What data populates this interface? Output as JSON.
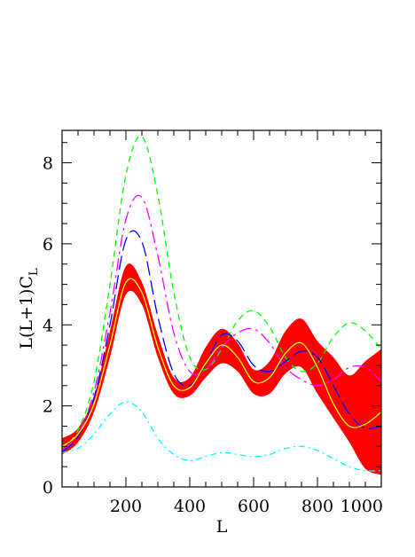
{
  "chart_data": {
    "type": "line",
    "title": "",
    "xlabel": "L",
    "ylabel_main": "L(L+1)C",
    "ylabel_sub": "L",
    "xlim": [
      0,
      1000
    ],
    "ylim": [
      0,
      8.8
    ],
    "x_ticks": [
      200,
      400,
      600,
      800,
      1000
    ],
    "x_tick_labels": [
      "200",
      "400",
      "600",
      "800",
      "1000"
    ],
    "y_ticks": [
      0,
      2,
      4,
      6,
      8
    ],
    "y_tick_labels": [
      "0",
      "2",
      "4",
      "6",
      "8"
    ],
    "grid": false,
    "legend": "none",
    "band": {
      "color": "#ff0000",
      "x": [
        0,
        50,
        100,
        150,
        200,
        250,
        300,
        350,
        400,
        450,
        500,
        550,
        600,
        650,
        700,
        750,
        800,
        850,
        900,
        950,
        1000
      ],
      "lower": [
        0.8,
        1.1,
        1.85,
        3.2,
        4.75,
        4.5,
        3.2,
        2.3,
        2.25,
        2.7,
        3.05,
        2.85,
        2.3,
        2.3,
        2.8,
        2.95,
        2.3,
        1.7,
        1.1,
        0.45,
        0.3
      ],
      "upper": [
        1.2,
        1.45,
        2.25,
        3.85,
        5.45,
        5.05,
        3.75,
        2.7,
        2.7,
        3.45,
        3.9,
        3.55,
        2.9,
        3.1,
        3.85,
        4.15,
        3.6,
        3.2,
        2.75,
        3.1,
        3.4
      ]
    },
    "series": [
      {
        "color": "#ffff00",
        "dash": "",
        "x": [
          0,
          50,
          100,
          150,
          200,
          250,
          300,
          350,
          400,
          450,
          500,
          550,
          600,
          650,
          700,
          750,
          800,
          850,
          900,
          950,
          1000
        ],
        "y": [
          1.0,
          1.3,
          2.05,
          3.5,
          5.05,
          4.8,
          3.45,
          2.5,
          2.45,
          3.05,
          3.5,
          3.2,
          2.6,
          2.7,
          3.3,
          3.55,
          2.95,
          2.05,
          1.5,
          1.55,
          1.85
        ]
      },
      {
        "color": "#00ff00",
        "dash": "7,5",
        "x": [
          0,
          50,
          100,
          150,
          200,
          250,
          300,
          350,
          400,
          450,
          500,
          550,
          600,
          650,
          700,
          750,
          800,
          850,
          900,
          950,
          1000
        ],
        "y": [
          0.95,
          1.4,
          2.6,
          5.0,
          7.7,
          8.65,
          7.2,
          4.8,
          3.2,
          2.9,
          3.4,
          4.1,
          4.35,
          3.95,
          3.2,
          2.85,
          3.05,
          3.7,
          4.05,
          3.85,
          3.4
        ]
      },
      {
        "color": "#ff00ff",
        "dash": "14,5,3,5",
        "x": [
          0,
          50,
          100,
          150,
          200,
          250,
          300,
          350,
          400,
          450,
          500,
          550,
          600,
          650,
          700,
          750,
          800,
          850,
          900,
          950,
          1000
        ],
        "y": [
          0.9,
          1.3,
          2.35,
          4.3,
          6.6,
          7.15,
          5.7,
          3.8,
          2.85,
          2.9,
          3.45,
          3.8,
          3.9,
          3.55,
          2.95,
          2.65,
          2.5,
          2.65,
          2.95,
          2.95,
          2.6
        ]
      },
      {
        "color": "#0000ff",
        "dash": "16,6",
        "x": [
          0,
          50,
          100,
          150,
          200,
          250,
          300,
          350,
          400,
          450,
          500,
          550,
          600,
          650,
          700,
          750,
          800,
          850,
          900,
          950,
          1000
        ],
        "y": [
          0.85,
          1.25,
          2.2,
          4.0,
          6.1,
          6.05,
          4.2,
          2.8,
          2.5,
          3.05,
          3.75,
          3.6,
          3.0,
          2.85,
          3.1,
          3.35,
          3.2,
          2.5,
          1.8,
          1.45,
          1.5
        ]
      },
      {
        "color": "#00ffff",
        "dash": "7,4,2,4",
        "x": [
          0,
          50,
          100,
          150,
          200,
          250,
          300,
          350,
          400,
          450,
          500,
          550,
          600,
          650,
          700,
          750,
          800,
          850,
          900,
          950,
          1000
        ],
        "y": [
          0.85,
          0.95,
          1.3,
          1.8,
          2.1,
          1.85,
          1.2,
          0.8,
          0.65,
          0.75,
          0.85,
          0.8,
          0.75,
          0.8,
          0.95,
          1.0,
          0.9,
          0.7,
          0.5,
          0.4,
          0.4
        ]
      }
    ]
  }
}
